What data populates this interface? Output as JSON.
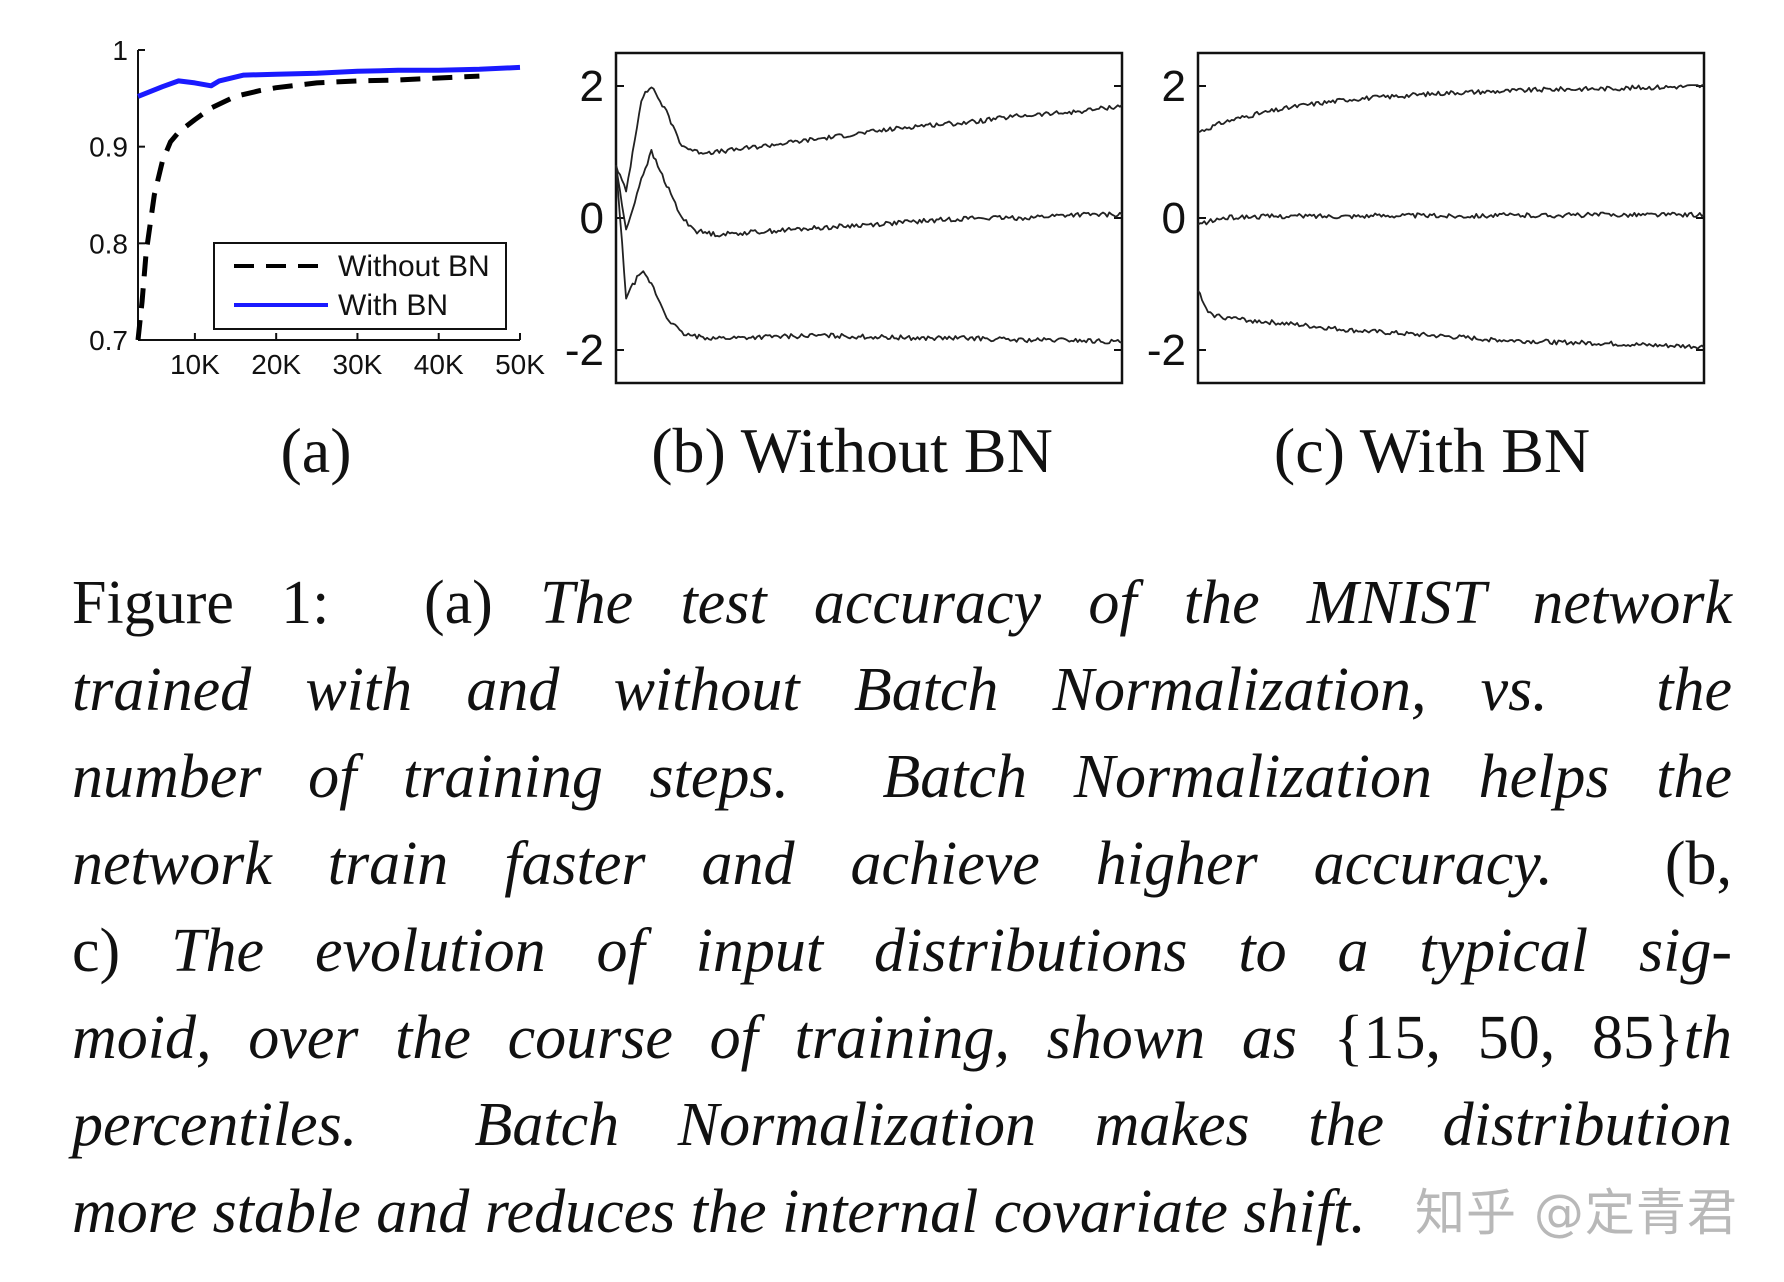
{
  "chart_data": [
    {
      "type": "line",
      "panel_label": "(a)",
      "xlim": [
        3000,
        50000
      ],
      "ylim": [
        0.7,
        1.0
      ],
      "x_tick_labels": [
        "10K",
        "20K",
        "30K",
        "40K",
        "50K"
      ],
      "x_ticks": [
        10000,
        20000,
        30000,
        40000,
        50000
      ],
      "y_tick_labels": [
        "0.7",
        "0.8",
        "0.9",
        "1"
      ],
      "y_ticks": [
        0.7,
        0.8,
        0.9,
        1.0
      ],
      "legend_position": "lower-right",
      "series": [
        {
          "name": "Without BN",
          "color": "#000000",
          "dash": "dashed",
          "x": [
            3000,
            3500,
            4000,
            5000,
            6000,
            7000,
            8000,
            10000,
            12000,
            15000,
            18000,
            20000,
            25000,
            30000,
            35000,
            40000,
            45000
          ],
          "y": [
            0.7,
            0.74,
            0.79,
            0.85,
            0.885,
            0.905,
            0.915,
            0.928,
            0.94,
            0.952,
            0.958,
            0.961,
            0.966,
            0.968,
            0.969,
            0.971,
            0.973
          ]
        },
        {
          "name": "With BN",
          "color": "#1a1aff",
          "dash": "solid",
          "x": [
            3000,
            6000,
            8000,
            10000,
            12000,
            13000,
            16000,
            20000,
            25000,
            30000,
            35000,
            40000,
            45000,
            50000
          ],
          "y": [
            0.952,
            0.962,
            0.968,
            0.966,
            0.963,
            0.968,
            0.974,
            0.975,
            0.976,
            0.978,
            0.979,
            0.979,
            0.98,
            0.982
          ]
        }
      ]
    },
    {
      "type": "line",
      "panel_label": "(b) Without BN",
      "ylim": [
        -2.5,
        2.5
      ],
      "y_tick_labels": [
        "2",
        "0",
        "-2"
      ],
      "y_ticks": [
        2,
        0,
        -2
      ],
      "series": [
        {
          "name": "85th percentile",
          "x": [
            0,
            0.02,
            0.05,
            0.07,
            0.1,
            0.13,
            0.16,
            0.2,
            0.3,
            0.4,
            0.5,
            0.6,
            0.7,
            0.8,
            0.9,
            1.0
          ],
          "y": [
            0.8,
            0.4,
            1.8,
            2.0,
            1.6,
            1.1,
            1.0,
            1.0,
            1.1,
            1.2,
            1.3,
            1.4,
            1.45,
            1.55,
            1.6,
            1.7
          ]
        },
        {
          "name": "50th percentile",
          "x": [
            0,
            0.02,
            0.05,
            0.07,
            0.1,
            0.13,
            0.16,
            0.2,
            0.3,
            0.4,
            0.5,
            0.6,
            0.7,
            0.8,
            0.9,
            1.0
          ],
          "y": [
            0.8,
            -0.2,
            0.6,
            1.0,
            0.5,
            0.0,
            -0.2,
            -0.25,
            -0.2,
            -0.15,
            -0.1,
            -0.05,
            0.0,
            0.0,
            0.05,
            0.05
          ]
        },
        {
          "name": "15th percentile",
          "x": [
            0,
            0.02,
            0.05,
            0.07,
            0.1,
            0.13,
            0.16,
            0.2,
            0.3,
            0.4,
            0.5,
            0.6,
            0.7,
            0.8,
            0.9,
            1.0
          ],
          "y": [
            0.8,
            -1.2,
            -0.8,
            -1.0,
            -1.5,
            -1.75,
            -1.8,
            -1.82,
            -1.8,
            -1.78,
            -1.8,
            -1.82,
            -1.82,
            -1.85,
            -1.85,
            -1.88
          ]
        }
      ]
    },
    {
      "type": "line",
      "panel_label": "(c) With BN",
      "ylim": [
        -2.5,
        2.5
      ],
      "y_tick_labels": [
        "2",
        "0",
        "-2"
      ],
      "y_ticks": [
        2,
        0,
        -2
      ],
      "series": [
        {
          "name": "85th percentile",
          "x": [
            0,
            0.05,
            0.1,
            0.2,
            0.3,
            0.4,
            0.5,
            0.6,
            0.7,
            0.8,
            0.9,
            1.0
          ],
          "y": [
            1.3,
            1.45,
            1.55,
            1.7,
            1.8,
            1.85,
            1.9,
            1.92,
            1.95,
            1.96,
            1.98,
            2.0
          ]
        },
        {
          "name": "50th percentile",
          "x": [
            0,
            0.05,
            0.1,
            0.2,
            0.3,
            0.4,
            0.5,
            0.6,
            0.7,
            0.8,
            0.9,
            1.0
          ],
          "y": [
            -0.1,
            0.0,
            0.02,
            0.03,
            0.03,
            0.04,
            0.03,
            0.04,
            0.04,
            0.05,
            0.05,
            0.05
          ]
        },
        {
          "name": "15th percentile",
          "x": [
            0,
            0.02,
            0.05,
            0.1,
            0.2,
            0.3,
            0.4,
            0.5,
            0.6,
            0.7,
            0.8,
            0.9,
            1.0
          ],
          "y": [
            -1.1,
            -1.45,
            -1.5,
            -1.55,
            -1.62,
            -1.7,
            -1.75,
            -1.8,
            -1.85,
            -1.88,
            -1.9,
            -1.93,
            -1.95
          ]
        }
      ]
    }
  ],
  "caption": {
    "lines": [
      [
        {
          "t": "Figure 1:  (a) ",
          "i": false
        },
        {
          "t": "The test accuracy of the MNIST network",
          "i": true
        }
      ],
      [
        {
          "t": "trained with and without Batch Normalization, vs.  the",
          "i": true
        }
      ],
      [
        {
          "t": "number of training steps.  Batch Normalization helps the",
          "i": true
        }
      ],
      [
        {
          "t": "network train faster and achieve higher accuracy.",
          "i": true
        },
        {
          "t": "  (b,",
          "i": false
        }
      ],
      [
        {
          "t": "c) ",
          "i": false
        },
        {
          "t": "The evolution of input distributions to a typical sig-",
          "i": true
        }
      ],
      [
        {
          "t": "moid, over the course of training, shown as ",
          "i": true
        },
        {
          "t": "{15, 50, 85}",
          "i": false
        },
        {
          "t": "th",
          "i": true
        }
      ],
      [
        {
          "t": "percentiles.  Batch Normalization makes the distribution",
          "i": true
        }
      ],
      [
        {
          "t": "more stable and reduces the internal covariate shift.",
          "i": true
        }
      ]
    ]
  },
  "watermark": "知乎 @定青君"
}
